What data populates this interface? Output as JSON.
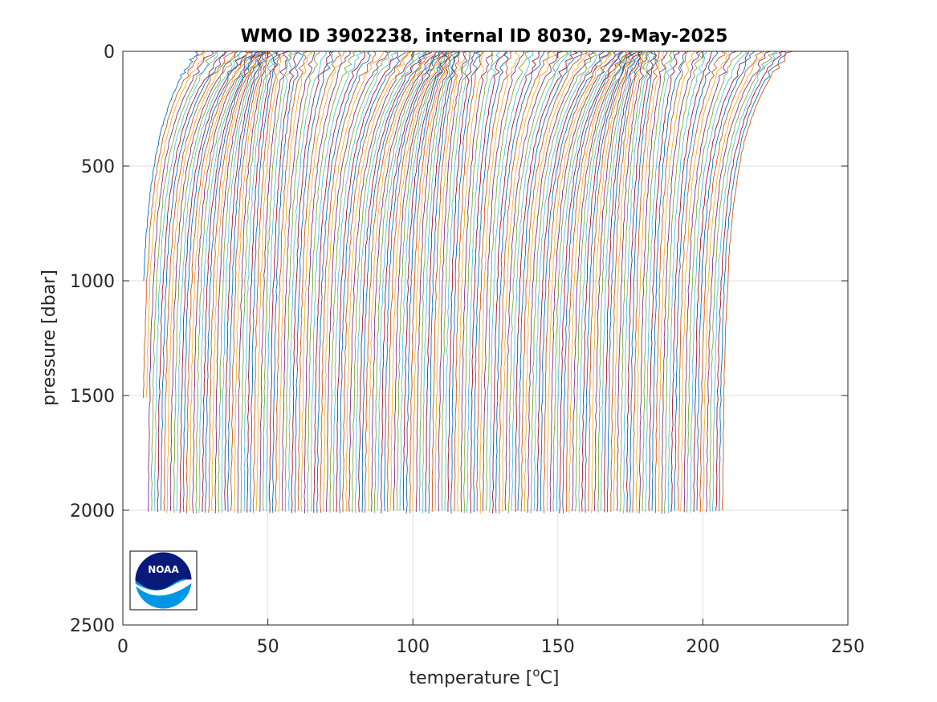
{
  "chart_data": {
    "type": "line",
    "title": "WMO ID 3902238, internal ID 8030, 29-May-2025",
    "xlabel_main": "temperature [",
    "xlabel_sup": "o",
    "xlabel_end": "C]",
    "ylabel": "pressure [dbar]",
    "xlim": [
      0,
      250
    ],
    "ylim": [
      0,
      2500
    ],
    "y_reversed": true,
    "grid": true,
    "xticks": [
      "0",
      "50",
      "100",
      "150",
      "200",
      "250"
    ],
    "yticks": [
      "0",
      "500",
      "1000",
      "1500",
      "2000",
      "2500"
    ],
    "profile_count": 184,
    "profile_spacing": 1.1,
    "first_profile_offset": 0,
    "series_colors": [
      "#0072BD",
      "#D95319",
      "#EDB120",
      "#7E2F8E",
      "#77AC30",
      "#4DBEEE",
      "#A2142F"
    ]
  },
  "logo": {
    "text": "NOAA",
    "dark": "#0A1A7A",
    "light": "#0096E6"
  }
}
